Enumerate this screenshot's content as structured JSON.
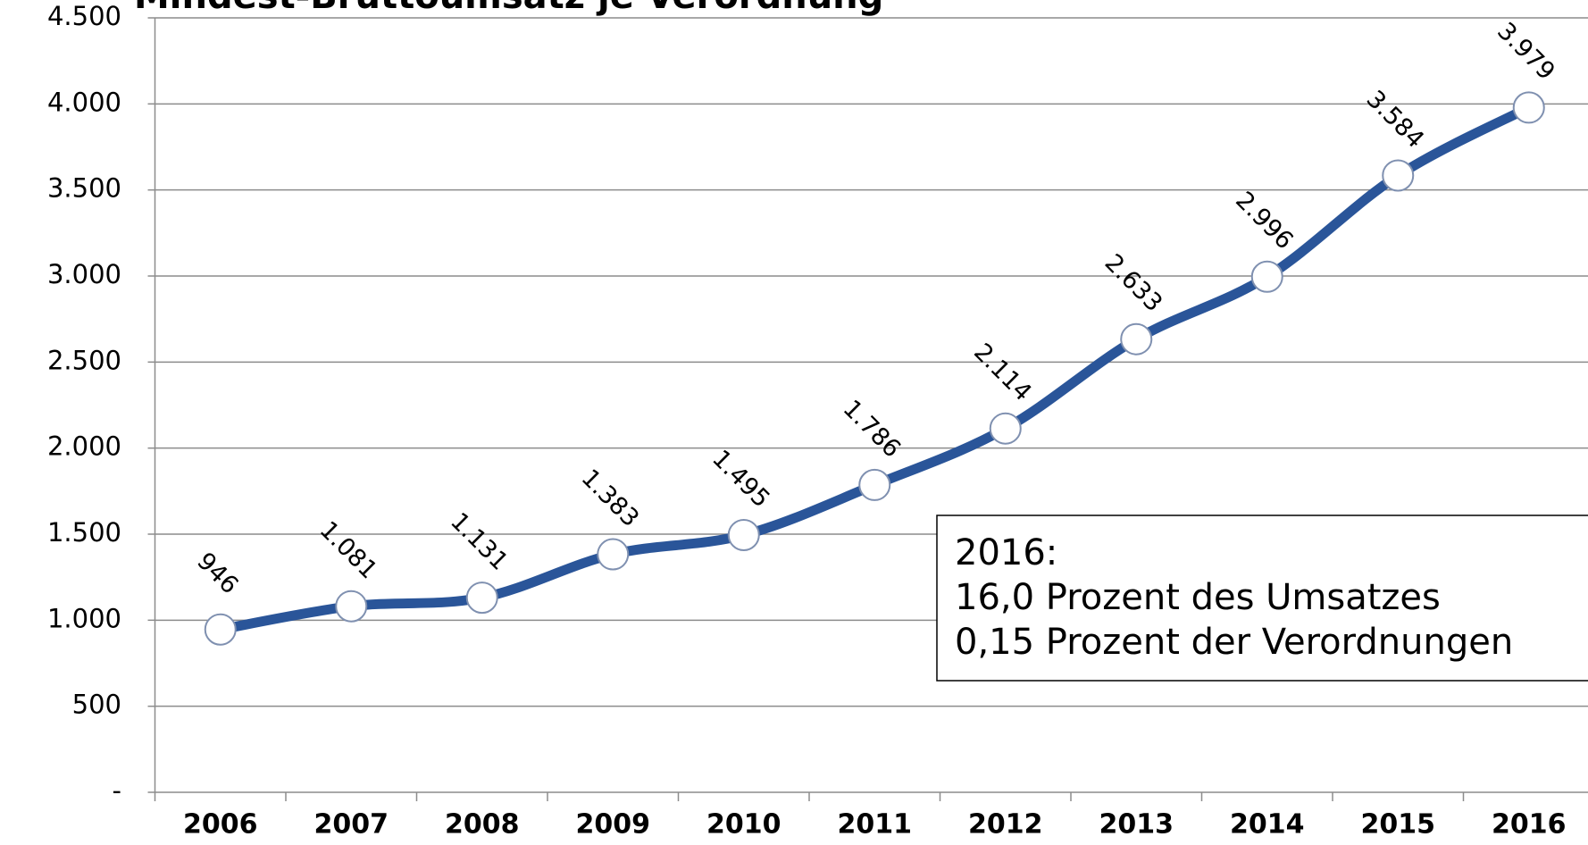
{
  "chart_data": {
    "type": "line",
    "title": "Mindest-Bruttoumsatz je Verordnung",
    "categories": [
      "2006",
      "2007",
      "2008",
      "2009",
      "2010",
      "2011",
      "2012",
      "2013",
      "2014",
      "2015",
      "2016"
    ],
    "series": [
      {
        "name": "Mindest-Bruttoumsatz je Verordnung",
        "color": "#2a5599",
        "values": [
          946,
          1081,
          1131,
          1383,
          1495,
          1786,
          2114,
          2633,
          2996,
          3584,
          3979
        ],
        "value_labels": [
          "946",
          "1.081",
          "1.131",
          "1.383",
          "1.495",
          "1.786",
          "2.114",
          "2.633",
          "2.996",
          "3.584",
          "3.979"
        ]
      }
    ],
    "ylim": [
      0,
      4500
    ],
    "yticks": [
      {
        "value": 0,
        "label": "-"
      },
      500,
      {
        "value": 1000,
        "label": "1.000"
      },
      {
        "value": 1500,
        "label": "1.500"
      },
      {
        "value": 2000,
        "label": "2.000"
      },
      {
        "value": 2500,
        "label": "2.500"
      },
      {
        "value": 3000,
        "label": "3.000"
      },
      {
        "value": 3500,
        "label": "3.500"
      },
      {
        "value": 4000,
        "label": "4.000"
      },
      {
        "value": 4500,
        "label": "4.500"
      }
    ],
    "grid": true,
    "annotation": [
      "2016:",
      "16,0 Prozent des Umsatzes",
      "0,15 Prozent der Verordnungen"
    ]
  }
}
